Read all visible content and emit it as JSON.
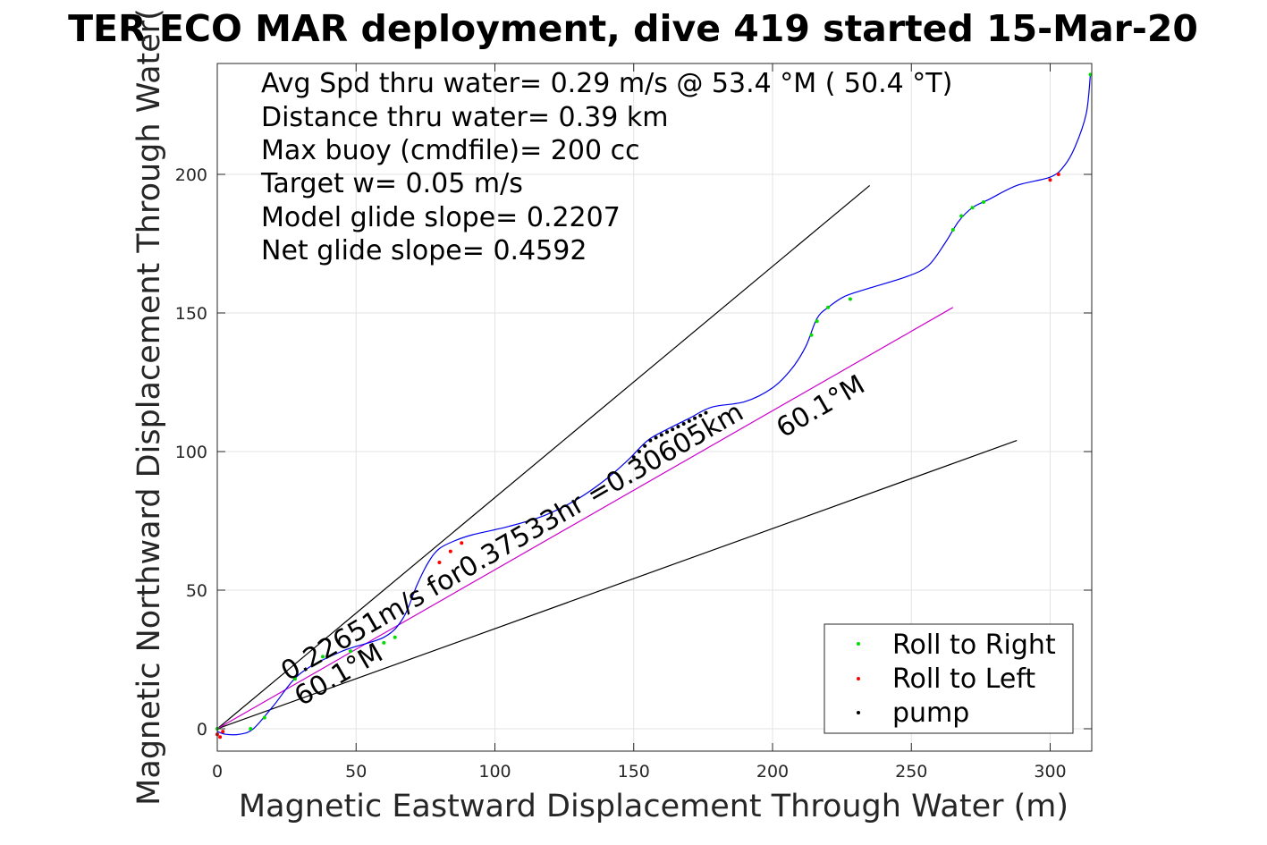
{
  "chart_data": {
    "type": "line",
    "title": "TER ECO MAR deployment, dive 419 started 15-Mar-20",
    "xlabel": "Magnetic Eastward Displacement Through Water (m)",
    "ylabel": "Magnetic Northward Displacement Through Water(",
    "xlim": [
      0,
      315
    ],
    "ylim": [
      -8,
      240
    ],
    "xticks": [
      0,
      50,
      100,
      150,
      200,
      250,
      300
    ],
    "yticks": [
      0,
      50,
      100,
      150,
      200
    ],
    "grid": true,
    "info_lines": [
      "Avg Spd thru water=  0.29 m/s @  53.4 °M ( 50.4 °T)",
      "Distance thru water=  0.39 km",
      "Max buoy (cmdfile)= 200 cc",
      "Target w= 0.05 m/s",
      "Model glide slope= 0.2207",
      "Net glide slope= 0.4592"
    ],
    "annotations": {
      "speed_text": "0.22651m/s for0.37533hr =0.30605km",
      "heading_lower": "60.1°M",
      "heading_upper": "60.1°M"
    },
    "reference_lines": [
      {
        "color": "#000000",
        "x": [
          0,
          235
        ],
        "y": [
          0,
          196
        ]
      },
      {
        "color": "#000000",
        "x": [
          0,
          288
        ],
        "y": [
          0,
          104
        ]
      },
      {
        "color": "#cc00cc",
        "x": [
          0,
          265
        ],
        "y": [
          0,
          152
        ]
      }
    ],
    "track": {
      "color": "#0000ee",
      "x": [
        0,
        3,
        8,
        13,
        20,
        30,
        45,
        60,
        67,
        72,
        76,
        80,
        86,
        92,
        105,
        118,
        130,
        140,
        148,
        155,
        162,
        170,
        178,
        190,
        200,
        207,
        212,
        216,
        220,
        226,
        235,
        248,
        256,
        262,
        267,
        272,
        278,
        288,
        300,
        305,
        309,
        313,
        314.5
      ],
      "y": [
        -1,
        -2,
        -2,
        0,
        8,
        20,
        28,
        33,
        40,
        52,
        60,
        65,
        68,
        70,
        73,
        77,
        83,
        90,
        97,
        104,
        108,
        112,
        116,
        118,
        123,
        130,
        138,
        148,
        152,
        156,
        159,
        163,
        167,
        175,
        183,
        188,
        191,
        196,
        199,
        203,
        210,
        222,
        236
      ]
    },
    "series": [
      {
        "name": "Roll to Right",
        "color": "#00dd00",
        "x": [
          0,
          12,
          17,
          28,
          38,
          48,
          60,
          64,
          214,
          216,
          220,
          228,
          265,
          268,
          272,
          276,
          314.5
        ],
        "y": [
          0,
          0,
          4,
          18,
          26,
          28,
          31,
          33,
          142,
          147,
          152,
          155,
          180,
          185,
          188,
          190,
          236
        ]
      },
      {
        "name": "Roll to Left",
        "color": "#ff0000",
        "x": [
          0,
          1,
          2,
          80,
          84,
          88,
          300,
          303
        ],
        "y": [
          -2,
          -3,
          -1,
          60,
          64,
          67,
          198,
          200
        ]
      },
      {
        "name": "pump",
        "color": "#000000",
        "x": [
          150,
          152,
          154,
          156,
          158,
          160,
          162,
          164,
          166,
          168,
          170,
          172,
          174,
          176
        ],
        "y": [
          98,
          100,
          102,
          104,
          105,
          106,
          107,
          108,
          109,
          110,
          111,
          112,
          113,
          114
        ]
      }
    ],
    "legend": {
      "placement": "bottom-right"
    }
  }
}
